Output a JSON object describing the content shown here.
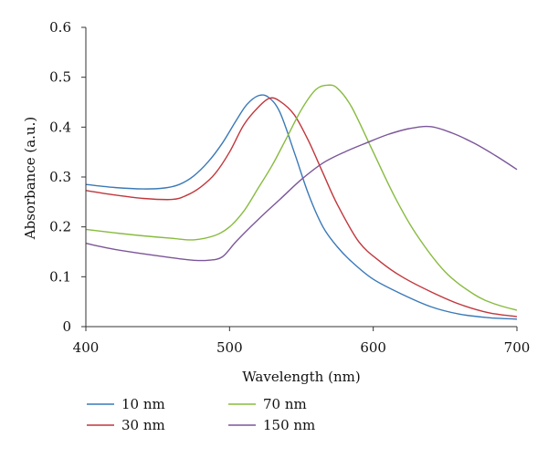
{
  "chart_data": {
    "type": "line",
    "xlabel": "Wavelength (nm)",
    "ylabel": "Absorbance (a.u.)",
    "xlim": [
      400,
      700
    ],
    "ylim": [
      0,
      0.6
    ],
    "x_ticks": [
      400,
      500,
      600,
      700
    ],
    "y_ticks": [
      0,
      0.1,
      0.2,
      0.3,
      0.4,
      0.5,
      0.6
    ],
    "x_tick_labels": [
      "400",
      "500",
      "600",
      "700"
    ],
    "y_tick_labels": [
      "0",
      "0.1",
      "0.2",
      "0.3",
      "0.4",
      "0.5",
      "0.6"
    ],
    "grid": false,
    "legend_position": "bottom-left",
    "series": [
      {
        "name": "10 nm",
        "color": "#3a79b8",
        "x": [
          400,
          420,
          440,
          455,
          465,
          475,
          485,
          495,
          505,
          512,
          520,
          527,
          535,
          545,
          555,
          565,
          575,
          585,
          600,
          620,
          640,
          660,
          680,
          700
        ],
        "y": [
          0.285,
          0.279,
          0.276,
          0.278,
          0.285,
          0.302,
          0.33,
          0.368,
          0.415,
          0.445,
          0.463,
          0.46,
          0.43,
          0.35,
          0.265,
          0.2,
          0.16,
          0.13,
          0.095,
          0.065,
          0.04,
          0.025,
          0.018,
          0.015
        ]
      },
      {
        "name": "30 nm",
        "color": "#c0373c",
        "x": [
          400,
          420,
          440,
          460,
          470,
          480,
          490,
          500,
          510,
          520,
          528,
          535,
          545,
          555,
          565,
          575,
          590,
          605,
          620,
          640,
          660,
          680,
          700
        ],
        "y": [
          0.273,
          0.264,
          0.257,
          0.255,
          0.263,
          0.28,
          0.307,
          0.35,
          0.405,
          0.44,
          0.458,
          0.452,
          0.425,
          0.372,
          0.308,
          0.245,
          0.17,
          0.13,
          0.1,
          0.07,
          0.045,
          0.028,
          0.02
        ]
      },
      {
        "name": "70 nm",
        "color": "#88bb3f",
        "x": [
          400,
          420,
          440,
          460,
          475,
          490,
          500,
          510,
          520,
          530,
          540,
          550,
          560,
          568,
          575,
          585,
          600,
          615,
          630,
          650,
          670,
          685,
          700
        ],
        "y": [
          0.195,
          0.188,
          0.182,
          0.177,
          0.174,
          0.183,
          0.2,
          0.232,
          0.278,
          0.325,
          0.38,
          0.435,
          0.475,
          0.484,
          0.478,
          0.44,
          0.35,
          0.26,
          0.185,
          0.11,
          0.065,
          0.045,
          0.033
        ]
      },
      {
        "name": "150 nm",
        "color": "#7b5699",
        "x": [
          400,
          420,
          440,
          460,
          475,
          485,
          495,
          505,
          520,
          535,
          550,
          565,
          580,
          595,
          610,
          625,
          640,
          655,
          670,
          685,
          700
        ],
        "y": [
          0.167,
          0.155,
          0.146,
          0.138,
          0.133,
          0.133,
          0.14,
          0.172,
          0.215,
          0.255,
          0.295,
          0.328,
          0.35,
          0.368,
          0.385,
          0.397,
          0.401,
          0.388,
          0.368,
          0.343,
          0.315
        ]
      }
    ]
  }
}
